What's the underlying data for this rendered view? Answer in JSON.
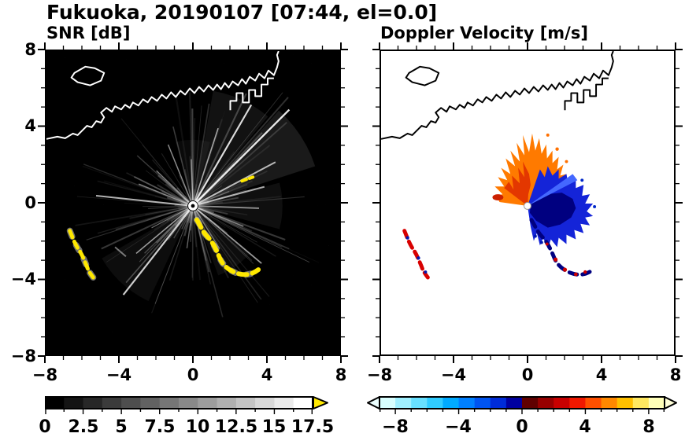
{
  "title": "Fukuoka, 20190107 [07:44, el=0.0]",
  "panels": {
    "left": {
      "subtitle": "SNR [dB]"
    },
    "right": {
      "subtitle": "Doppler Velocity [m/s]"
    }
  },
  "axes": {
    "x_ticks": [
      "−8",
      "−4",
      "0",
      "4",
      "8"
    ],
    "y_ticks": [
      "8",
      "4",
      "0",
      "−4",
      "−8"
    ]
  },
  "colorbars": {
    "snr": {
      "labels": [
        "0",
        "2.5",
        "5",
        "7.5",
        "10",
        "12.5",
        "15",
        "17.5"
      ]
    },
    "velocity": {
      "labels": [
        "−8",
        "−4",
        "0",
        "4",
        "8"
      ]
    }
  },
  "chart_data": [
    {
      "type": "heatmap",
      "title": "SNR [dB]",
      "suptitle": "Fukuoka, 20190107 [07:44, el=0.0]",
      "xlim": [
        -8,
        8
      ],
      "ylim": [
        -8,
        8
      ],
      "x_ticks": [
        -8,
        -4,
        0,
        4,
        8
      ],
      "y_ticks": [
        -8,
        -4,
        0,
        4,
        8
      ],
      "grid": false,
      "background": "#000000",
      "colorbar": {
        "label": "SNR [dB]",
        "orientation": "horizontal",
        "range": [
          0,
          17.5
        ],
        "tick_step": 2.5,
        "ticks": [
          0,
          2.5,
          5,
          7.5,
          10,
          12.5,
          15,
          17.5
        ],
        "segment_colors": [
          "#000000",
          "#141414",
          "#272727",
          "#3b3b3b",
          "#4e4e4e",
          "#626262",
          "#767676",
          "#898989",
          "#9d9d9d",
          "#b0b0b0",
          "#c4c4c4",
          "#d8d8d8",
          "#ebebeb",
          "#ffffff"
        ],
        "over_color": "#ffe800"
      },
      "features": [
        "radar site at origin (0,0) with bright white center dot and black core",
        "grainy white radial interference spokes emanating from the origin, densest toward the northeast and east",
        "high-SNR (yellow, >17.5 dB) echo arc curving southeast from near the origin toward (3.5,-4)",
        "small yellow echo speck near (2.6,1.3)",
        "high-SNR yellow echo patches from about (-6.8,-1.7) down to (-5.7,-4.0)",
        "white coastline outline across the upper third, an island near (-6.3,6.9) and blocky harbor piers near (1.5,5.5)"
      ]
    },
    {
      "type": "heatmap",
      "title": "Doppler Velocity [m/s]",
      "suptitle": "Fukuoka, 20190107 [07:44, el=0.0]",
      "xlim": [
        -8,
        8
      ],
      "ylim": [
        -8,
        8
      ],
      "x_ticks": [
        -8,
        -4,
        0,
        4,
        8
      ],
      "y_ticks": [
        -8,
        -4,
        0,
        4,
        8
      ],
      "grid": false,
      "background": "#ffffff",
      "colorbar": {
        "label": "Doppler Velocity [m/s]",
        "orientation": "horizontal",
        "range": [
          -9,
          9
        ],
        "tick_step": 4,
        "ticks": [
          -8,
          -4,
          0,
          4,
          8
        ],
        "segment_colors": [
          "#d8ffff",
          "#a0f0ff",
          "#68e0ff",
          "#30ccff",
          "#00aaff",
          "#0080ff",
          "#0054f0",
          "#002cd8",
          "#0000a0",
          "#600000",
          "#980000",
          "#c80000",
          "#f01800",
          "#ff5000",
          "#ff8800",
          "#ffc000",
          "#ffe860",
          "#ffffb8"
        ],
        "under_color": "#ecffff",
        "over_color": "#ffffd8"
      },
      "features": [
        "spiky fan of positive velocities (orange/red, toward ~+3 to +7 m/s) north and northwest of the origin",
        "spiky fan of negative velocities (blue/navy, ~-2 to -8 m/s) east and southeast of the origin with a dense dark-navy core just right of center",
        "small white dot at the radar origin",
        "red and blue echo fragments from about (-6.8,-1.7) down to (-5.7,-4.0)",
        "dark-navy and red echo arc fragments from about (1,-1.5) to (3.5,-3.8)",
        "black coastline outline identical in shape to the SNR panel"
      ]
    }
  ]
}
